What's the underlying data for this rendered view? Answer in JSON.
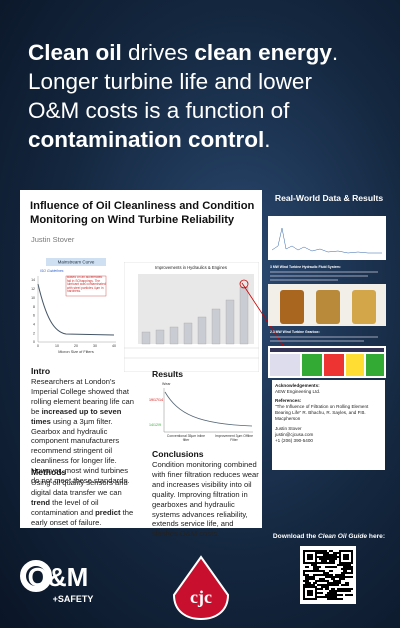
{
  "headline": [
    [
      {
        "text": "Clean oil",
        "bold": true
      },
      {
        "text": " drives ",
        "bold": false
      },
      {
        "text": "clean energy",
        "bold": true
      },
      {
        "text": ".",
        "bold": false
      }
    ],
    [
      {
        "text": "Longer turbine life and lower",
        "bold": false
      }
    ],
    [
      {
        "text": "O&M costs is a function of",
        "bold": false
      }
    ],
    [
      {
        "text": "contamination control",
        "bold": true
      },
      {
        "text": ".",
        "bold": false
      }
    ]
  ],
  "poster": {
    "title": "Influence of Oil Cleanliness and Condition Monitoring on Wind Turbine Reliability",
    "author": "Justin Stover",
    "curve_chart": {
      "title": "Mainstream Curve",
      "legend": "ISO Guidelines",
      "note": "Based on an accelerated fail in SOhappings. The lubricant was contaminated with steel particles 4µm in hardness.",
      "xlabel": "Micron Size of Filters",
      "yticks": [
        14,
        12,
        10,
        8,
        6,
        4,
        2,
        0
      ],
      "xticks": [
        0,
        10,
        20,
        30,
        40
      ]
    },
    "bar_chart": {
      "title": "Improvements in Hydraulics & Engines"
    },
    "intro": {
      "heading": "Intro",
      "text": [
        {
          "text": "Researchers at London's Imperial College showed that rolling element bearing life can be ",
          "bold": false
        },
        {
          "text": "increased up to seven times",
          "bold": true
        },
        {
          "text": " using a 3µm filter. Gearbox and hydraulic component manufacturers recommend stringent oil cleanliness for longer life. However, most wind turbines do not meet these standards.",
          "bold": false
        }
      ]
    },
    "methods": {
      "heading": "Methods",
      "text": [
        {
          "text": "Using oil quality sensors and digital data transfer we can ",
          "bold": false
        },
        {
          "text": "trend",
          "bold": true
        },
        {
          "text": " the level of oil contamination and ",
          "bold": false
        },
        {
          "text": "predict",
          "bold": true
        },
        {
          "text": " the early onset of failure.",
          "bold": false
        }
      ]
    },
    "results": {
      "heading": "Results",
      "ylabel": "Wear",
      "label_high": "19/17/14",
      "label_low": "14/12/9",
      "x_left": "Conventional 35µm inline filter",
      "x_right": "Improvement 3µm Offline Filter"
    },
    "conclusions": {
      "heading": "Conclusions",
      "text": [
        {
          "text": "Condition monitoring combined with finer filtration reduces wear and increases visibility into oil quality. Improving filtration in gearboxes and hydraulic systems advances reliability, extends service life, and slashes O&M costs.",
          "bold": false
        }
      ]
    }
  },
  "right": {
    "heading": "Real-World Data & Results",
    "caption1": "3 MW Wind Turbine Hydraulic Fluid System:",
    "caption2": "2.3 MW Wind Turbine Gearbox:",
    "ack": [
      "Acknowledgements:",
      "AEW Engineering Ltd.",
      "References:",
      "\"The Influence of Filtration on Rolling Element Bearing Life\" R. Bhachu, R. Sayles, and P.B. Macpherson",
      "Justin Stover",
      "justin@cjcusa.com",
      "+1 (206) 390-5400"
    ]
  },
  "footer": {
    "download_pre": "Download the ",
    "download_em": "Clean Oil Guide",
    "download_post": " here:",
    "logo1": "O&M",
    "logo1_sub": "+SAFETY",
    "logo2": "cjc"
  }
}
